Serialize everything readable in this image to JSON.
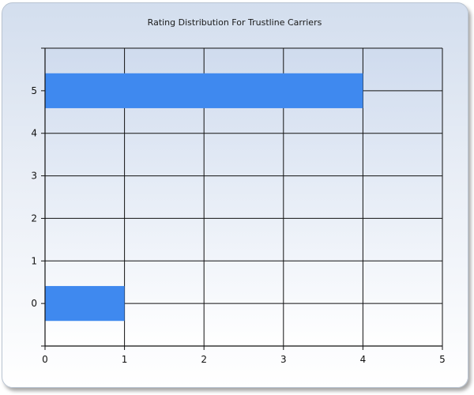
{
  "chart_data": {
    "type": "bar",
    "orientation": "horizontal",
    "title": "Rating Distribution For Trustline Carriers",
    "xlabel": "",
    "ylabel": "",
    "categories": [
      "0",
      "5"
    ],
    "values": [
      1,
      4
    ],
    "xlim": [
      0,
      5
    ],
    "ylim": [
      -1,
      6
    ],
    "x_ticks": [
      "0",
      "1",
      "2",
      "3",
      "4",
      "5"
    ],
    "y_ticks": [
      "0",
      "1",
      "2",
      "3",
      "4",
      "5"
    ],
    "grid": true,
    "bar_color": "#3f89ef",
    "plot_background_top": "#cfdbee",
    "plot_background_bottom": "#ffffff"
  }
}
